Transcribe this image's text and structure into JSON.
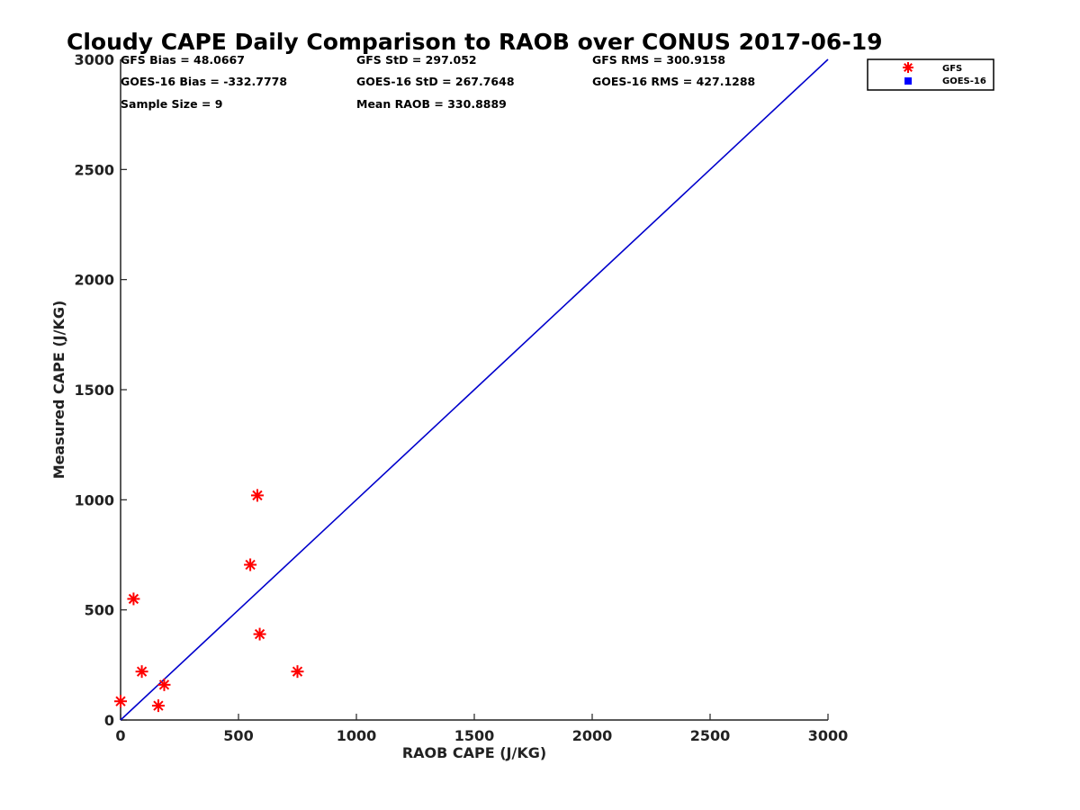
{
  "chart_data": {
    "type": "scatter",
    "title": "Cloudy CAPE Daily Comparison to RAOB over CONUS 2017-06-19",
    "xlabel": "RAOB CAPE (J/KG)",
    "ylabel": "Measured CAPE (J/KG)",
    "xlim": [
      0,
      3000
    ],
    "ylim": [
      0,
      3000
    ],
    "xticks": [
      "0",
      "500",
      "1000",
      "1500",
      "2000",
      "2500",
      "3000"
    ],
    "yticks": [
      "0",
      "500",
      "1000",
      "1500",
      "2000",
      "2500",
      "3000"
    ],
    "grid": false,
    "legend_position": "top-right",
    "stats": [
      [
        "GFS Bias = 48.0667",
        "GFS StD = 297.052",
        "GFS RMS = 300.9158"
      ],
      [
        "GOES-16 Bias = -332.7778",
        "GOES-16 StD = 267.7648",
        "GOES-16 RMS = 427.1288"
      ],
      [
        "Sample Size = 9",
        "Mean RAOB = 330.8889",
        ""
      ]
    ],
    "reference_line": {
      "x": [
        0,
        3000
      ],
      "y": [
        0,
        3000
      ],
      "color": "#0000cc"
    },
    "series": [
      {
        "name": "GFS",
        "marker": "asterisk",
        "color": "#ff0000",
        "points": [
          [
            0,
            85
          ],
          [
            55,
            550
          ],
          [
            90,
            220
          ],
          [
            160,
            65
          ],
          [
            185,
            160
          ],
          [
            550,
            705
          ],
          [
            580,
            1020
          ],
          [
            590,
            390
          ],
          [
            750,
            220
          ]
        ]
      },
      {
        "name": "GOES-16",
        "marker": "square",
        "color": "#0000ff",
        "points": []
      }
    ]
  }
}
